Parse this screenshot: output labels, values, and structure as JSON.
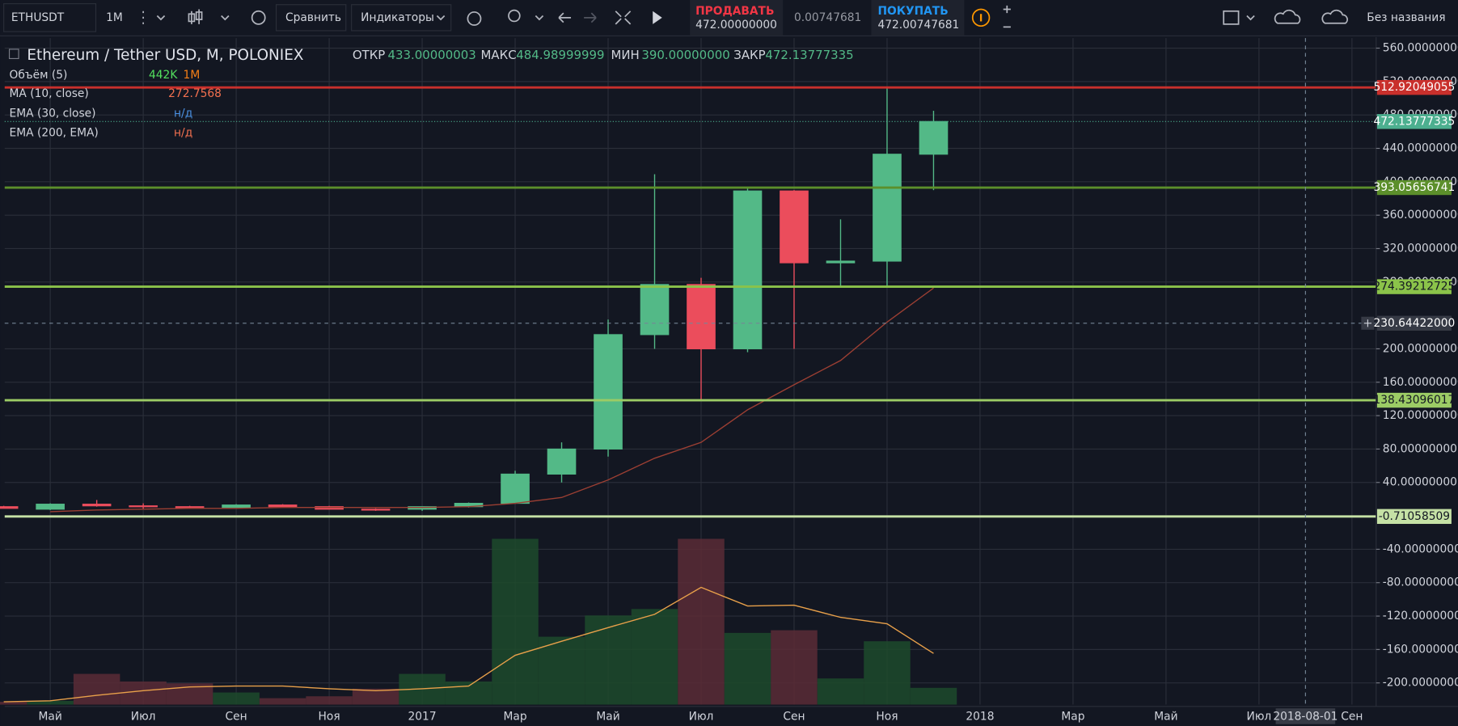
{
  "toolbar": {
    "symbol": "ETHUSDT",
    "interval": "1M",
    "compare": "Сравнить",
    "indicators": "Индикаторы",
    "sell_label": "ПРОДАВАТЬ",
    "sell_price": "472.00000000",
    "spread": "0.00747681",
    "buy_label": "ПОКУПАТЬ",
    "buy_price": "472.00747681",
    "layout_name": "Без названия"
  },
  "legend": {
    "title": "Ethereum / Tether USD, M, POLONIEX",
    "open_label": "ОТКР",
    "high_label": "МАКС",
    "low_label": "МИН",
    "close_label": "ЗАКР",
    "volume_name": "Объём (5)",
    "indicators": [
      {
        "name": "MA (10, close)"
      },
      {
        "name": "EMA (30, close)",
        "value": "н/д"
      },
      {
        "name": "EMA (200, EMA)",
        "value": "н/д"
      }
    ]
  },
  "chart_data": {
    "type": "candlestick",
    "categories": [
      null,
      "Май",
      null,
      "Июл",
      null,
      "Сен",
      null,
      "Ноя",
      null,
      "2017",
      null,
      "Мар",
      null,
      "Май",
      null,
      "Июл",
      null,
      "Сен",
      null,
      "Ноя",
      null,
      "2018",
      null,
      "Мар",
      null,
      "Май",
      null,
      "Июл",
      "2018-08-01",
      "Сен"
    ],
    "open": [
      11,
      8,
      14,
      12,
      11,
      10,
      13,
      11,
      8,
      8,
      11,
      15,
      50,
      80,
      217,
      277,
      200,
      389,
      303,
      305,
      433.00000003,
      null,
      null,
      null,
      null,
      null,
      null,
      null,
      null,
      null
    ],
    "high": [
      12,
      15,
      19,
      15,
      12,
      14,
      14,
      12,
      9,
      11,
      16,
      54,
      88,
      235,
      409,
      285,
      393,
      390,
      355,
      513,
      484.98999999,
      null,
      null,
      null,
      null,
      null,
      null,
      null,
      null,
      null
    ],
    "low": [
      9,
      7,
      11,
      8,
      9,
      10,
      10,
      8,
      6,
      6,
      10,
      15,
      40,
      71,
      200,
      139,
      196,
      200,
      275,
      275,
      {
        "value": 390,
        "label": "390.00000000"
      },
      null,
      null,
      null,
      null,
      null,
      null,
      null,
      null,
      null
    ],
    "close": [
      9,
      14,
      12,
      11,
      10,
      13,
      11,
      8,
      7,
      11,
      15,
      50,
      80,
      217,
      277,
      200,
      389,
      303,
      305,
      433,
      472.13777335,
      null,
      null,
      null,
      null,
      null,
      null,
      null,
      null,
      null
    ],
    "up_color": "#53b987",
    "down_color": "#eb4d5c",
    "ma": {
      "color": "#9c3f33",
      "values": [
        null,
        5,
        7,
        8,
        9,
        9,
        10,
        10,
        10,
        10,
        11,
        15,
        22,
        43,
        69,
        88,
        127,
        157,
        186,
        232,
        272.7568,
        null,
        null,
        null,
        null,
        null,
        null,
        null,
        null,
        null
      ]
    },
    "volume": [
      74,
      100,
      810,
      610,
      560,
      320,
      170,
      220,
      420,
      810,
      610,
      4370,
      1790,
      2350,
      2520,
      4370,
      1890,
      1960,
      690,
      1670,
      {
        "value": 442,
        "label": "442K"
      },
      null,
      null,
      null,
      null,
      null,
      null,
      null,
      null,
      null
    ],
    "volume_ma": [
      74,
      100,
      245,
      368,
      466,
      490,
      490,
      417,
      368,
      417,
      490,
      1300,
      1670,
      2030,
      2380,
      3090,
      2600,
      2620,
      2300,
      2130,
      {
        "value": 1350,
        "label": "1M"
      },
      null,
      null,
      null,
      null,
      null,
      null,
      null,
      null,
      null
    ],
    "volume_up_color": "#1d4a2c",
    "volume_down_color": "#5a2c36",
    "volume_ma_color": "#e8a04a",
    "ylim": [
      -226,
      572
    ],
    "yticks": [
      {
        "value": 560,
        "label": "560.00000000"
      },
      {
        "value": 520,
        "label": "520.00000000"
      },
      {
        "value": 480,
        "label": "480.00000000"
      },
      {
        "value": 440,
        "label": "440.00000000"
      },
      {
        "value": 400,
        "label": "400.00000000"
      },
      {
        "value": 360,
        "label": "360.00000000"
      },
      {
        "value": 320,
        "label": "320.00000000"
      },
      {
        "value": 280,
        "label": "280.00000000"
      },
      {
        "value": 200,
        "label": "200.00000000"
      },
      {
        "value": 160,
        "label": "160.00000000"
      },
      {
        "value": 120,
        "label": "120.00000000"
      },
      {
        "value": 80,
        "label": "80.00000000"
      },
      {
        "value": 40,
        "label": "40.00000000"
      },
      {
        "value": -40,
        "label": "-40.00000000"
      },
      {
        "value": -80,
        "label": "-80.00000000"
      },
      {
        "value": -120,
        "label": "-120.00000000"
      },
      {
        "value": -160,
        "label": "-160.00000000"
      },
      {
        "value": -200,
        "label": "-200.00000000"
      }
    ],
    "grid": true,
    "levels": [
      {
        "value": 512.92049055,
        "color": "#c9302c"
      },
      {
        "value": 393.05656741,
        "color": "#5c8f2b"
      },
      {
        "value": 274.39212725,
        "color": "#8bc34a"
      },
      {
        "value": 138.43096017,
        "color": "#9ccc65"
      },
      {
        "value": -0.71058509,
        "color": "#c5e1a5"
      }
    ],
    "price_line_color": "#4caf8f",
    "crosshair": {
      "x_index": 28,
      "y": {
        "value": 230.64422,
        "label": "230.64422000"
      }
    }
  }
}
